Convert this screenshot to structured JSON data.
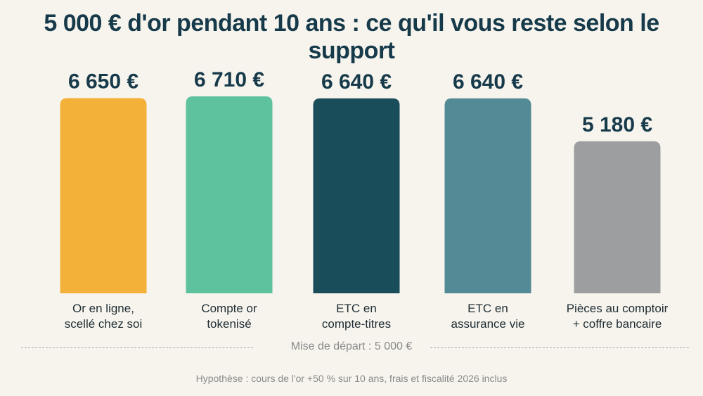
{
  "title": "5 000 € d'or pendant 10 ans : ce qu'il vous reste selon le support",
  "chart_data": {
    "type": "bar",
    "title": "5 000 € d'or pendant 10 ans : ce qu'il vous reste selon le support",
    "categories": [
      "Or en ligne, scellé chez soi",
      "Compte or tokenisé",
      "ETC en compte-titres",
      "ETC en assurance vie",
      "Pièces au comptoir + coffre bancaire"
    ],
    "category_lines": [
      [
        "Or en ligne,",
        "scellé chez soi"
      ],
      [
        "Compte or",
        "tokenisé"
      ],
      [
        "ETC en",
        "compte-titres"
      ],
      [
        "ETC en",
        "assurance vie"
      ],
      [
        "Pièces au comptoir",
        "+ coffre bancaire"
      ]
    ],
    "values": [
      6650,
      6710,
      6640,
      6640,
      5180
    ],
    "value_labels": [
      "6 650 €",
      "6 710 €",
      "6 640 €",
      "6 640 €",
      "5 180 €"
    ],
    "colors": [
      "#f4b13a",
      "#5fc29e",
      "#1a4d5a",
      "#548a95",
      "#9c9e9f"
    ],
    "unit": "€",
    "grid": false,
    "legend": "none",
    "baseline_label": "Mise de départ : 5 000 €",
    "footnote": "Hypothèse : cours de l'or +50 % sur 10 ans, frais et fiscalité 2026 inclus"
  }
}
